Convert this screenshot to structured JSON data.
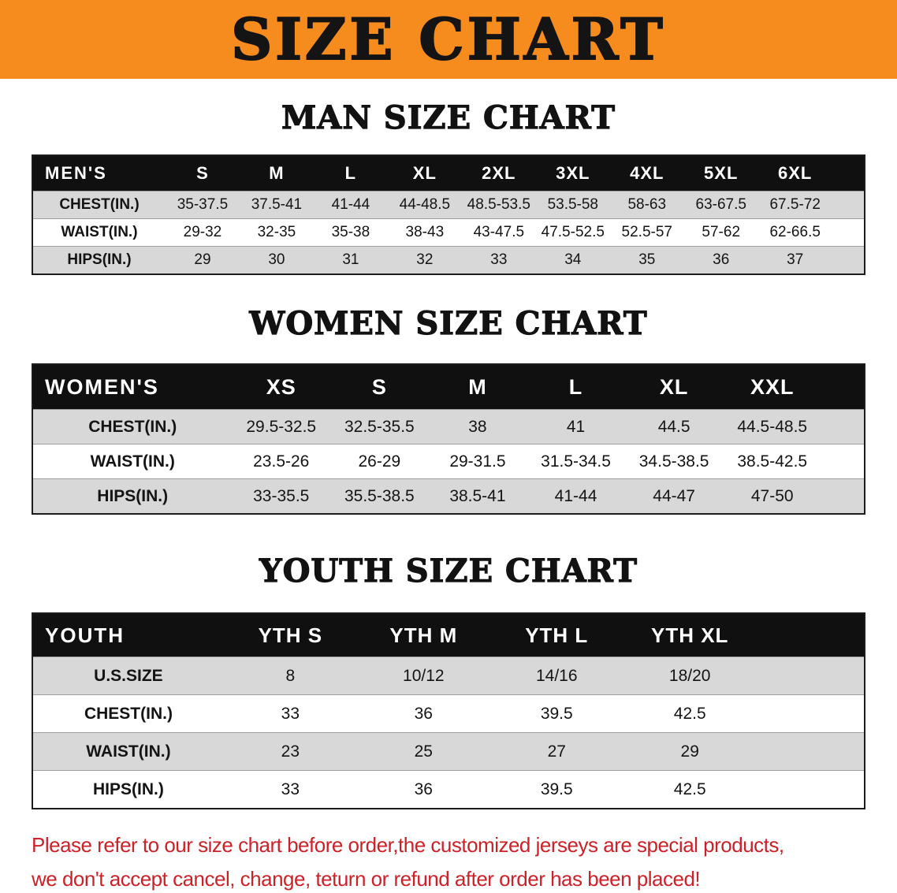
{
  "banner": {
    "title": "SIZE CHART"
  },
  "sections": [
    {
      "heading": "MAN SIZE CHART",
      "table_title": "MEN'S",
      "columns": [
        "S",
        "M",
        "L",
        "XL",
        "2XL",
        "3XL",
        "4XL",
        "5XL",
        "6XL"
      ],
      "rows": [
        {
          "label": "CHEST(IN.)",
          "values": [
            "35-37.5",
            "37.5-41",
            "41-44",
            "44-48.5",
            "48.5-53.5",
            "53.5-58",
            "58-63",
            "63-67.5",
            "67.5-72"
          ]
        },
        {
          "label": "WAIST(IN.)",
          "values": [
            "29-32",
            "32-35",
            "35-38",
            "38-43",
            "43-47.5",
            "47.5-52.5",
            "52.5-57",
            "57-62",
            "62-66.5"
          ]
        },
        {
          "label": "HIPS(IN.)",
          "values": [
            "29",
            "30",
            "31",
            "32",
            "33",
            "34",
            "35",
            "36",
            "37"
          ]
        }
      ]
    },
    {
      "heading": "WOMEN SIZE CHART",
      "table_title": "WOMEN'S",
      "columns": [
        "XS",
        "S",
        "M",
        "L",
        "XL",
        "XXL"
      ],
      "rows": [
        {
          "label": "CHEST(IN.)",
          "values": [
            "29.5-32.5",
            "32.5-35.5",
            "38",
            "41",
            "44.5",
            "44.5-48.5"
          ]
        },
        {
          "label": "WAIST(IN.)",
          "values": [
            "23.5-26",
            "26-29",
            "29-31.5",
            "31.5-34.5",
            "34.5-38.5",
            "38.5-42.5"
          ]
        },
        {
          "label": "HIPS(IN.)",
          "values": [
            "33-35.5",
            "35.5-38.5",
            "38.5-41",
            "41-44",
            "44-47",
            "47-50"
          ]
        }
      ]
    },
    {
      "heading": "YOUTH SIZE CHART",
      "table_title": "YOUTH",
      "columns": [
        "YTH S",
        "YTH M",
        "YTH L",
        "YTH XL"
      ],
      "rows": [
        {
          "label": "U.S.SIZE",
          "values": [
            "8",
            "10/12",
            "14/16",
            "18/20"
          ]
        },
        {
          "label": "CHEST(IN.)",
          "values": [
            "33",
            "36",
            "39.5",
            "42.5"
          ]
        },
        {
          "label": "WAIST(IN.)",
          "values": [
            "23",
            "25",
            "27",
            "29"
          ]
        },
        {
          "label": "HIPS(IN.)",
          "values": [
            "33",
            "36",
            "39.5",
            "42.5"
          ]
        }
      ]
    }
  ],
  "footer": {
    "lines": [
      "Please refer to our size chart before order,the customized jerseys are special products,",
      "we don't accept cancel, change, teturn or refund after order has been placed!"
    ]
  },
  "colors": {
    "banner_bg": "#F68B1E",
    "header_bg": "#101010",
    "header_text": "#FFFFFF",
    "row_alt_bg": "#D8D8D8",
    "footer_text": "#CD2128"
  }
}
